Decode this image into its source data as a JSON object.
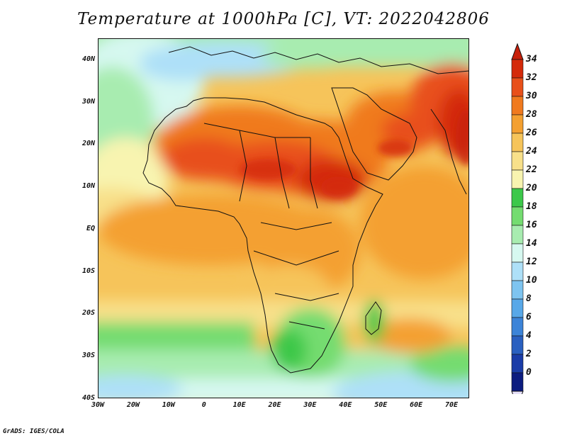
{
  "title": "Temperature at 1000hPa [C], VT: 2022042806",
  "credit": "GrADS: IGES/COLA",
  "map": {
    "lon_range": [
      -30,
      75
    ],
    "lat_range": [
      -40,
      45
    ],
    "y_axis_labels": [
      "40N",
      "30N",
      "20N",
      "10N",
      "EQ",
      "10S",
      "20S",
      "30S",
      "40S"
    ],
    "x_axis_labels": [
      "30W",
      "20W",
      "10W",
      "0",
      "10E",
      "20E",
      "30E",
      "40E",
      "50E",
      "60E",
      "70E"
    ]
  },
  "colorbar": {
    "labels": [
      "34",
      "32",
      "30",
      "28",
      "26",
      "24",
      "22",
      "20",
      "18",
      "16",
      "14",
      "12",
      "10",
      "8",
      "6",
      "4",
      "2",
      "0"
    ],
    "colors": [
      "#d42a0a",
      "#e8501a",
      "#f07a1e",
      "#f4a030",
      "#f6c45a",
      "#f8e08a",
      "#f8f4b0",
      "#3cc84a",
      "#74dc70",
      "#a8ecb0",
      "#d6f8f0",
      "#aee0f8",
      "#7ec4f0",
      "#58a8e8",
      "#3c84d8",
      "#2a60c0",
      "#1a3ca8",
      "#0c1c80"
    ],
    "top_color": "#c8200a",
    "bottom_color": "#e6e0f8"
  }
}
